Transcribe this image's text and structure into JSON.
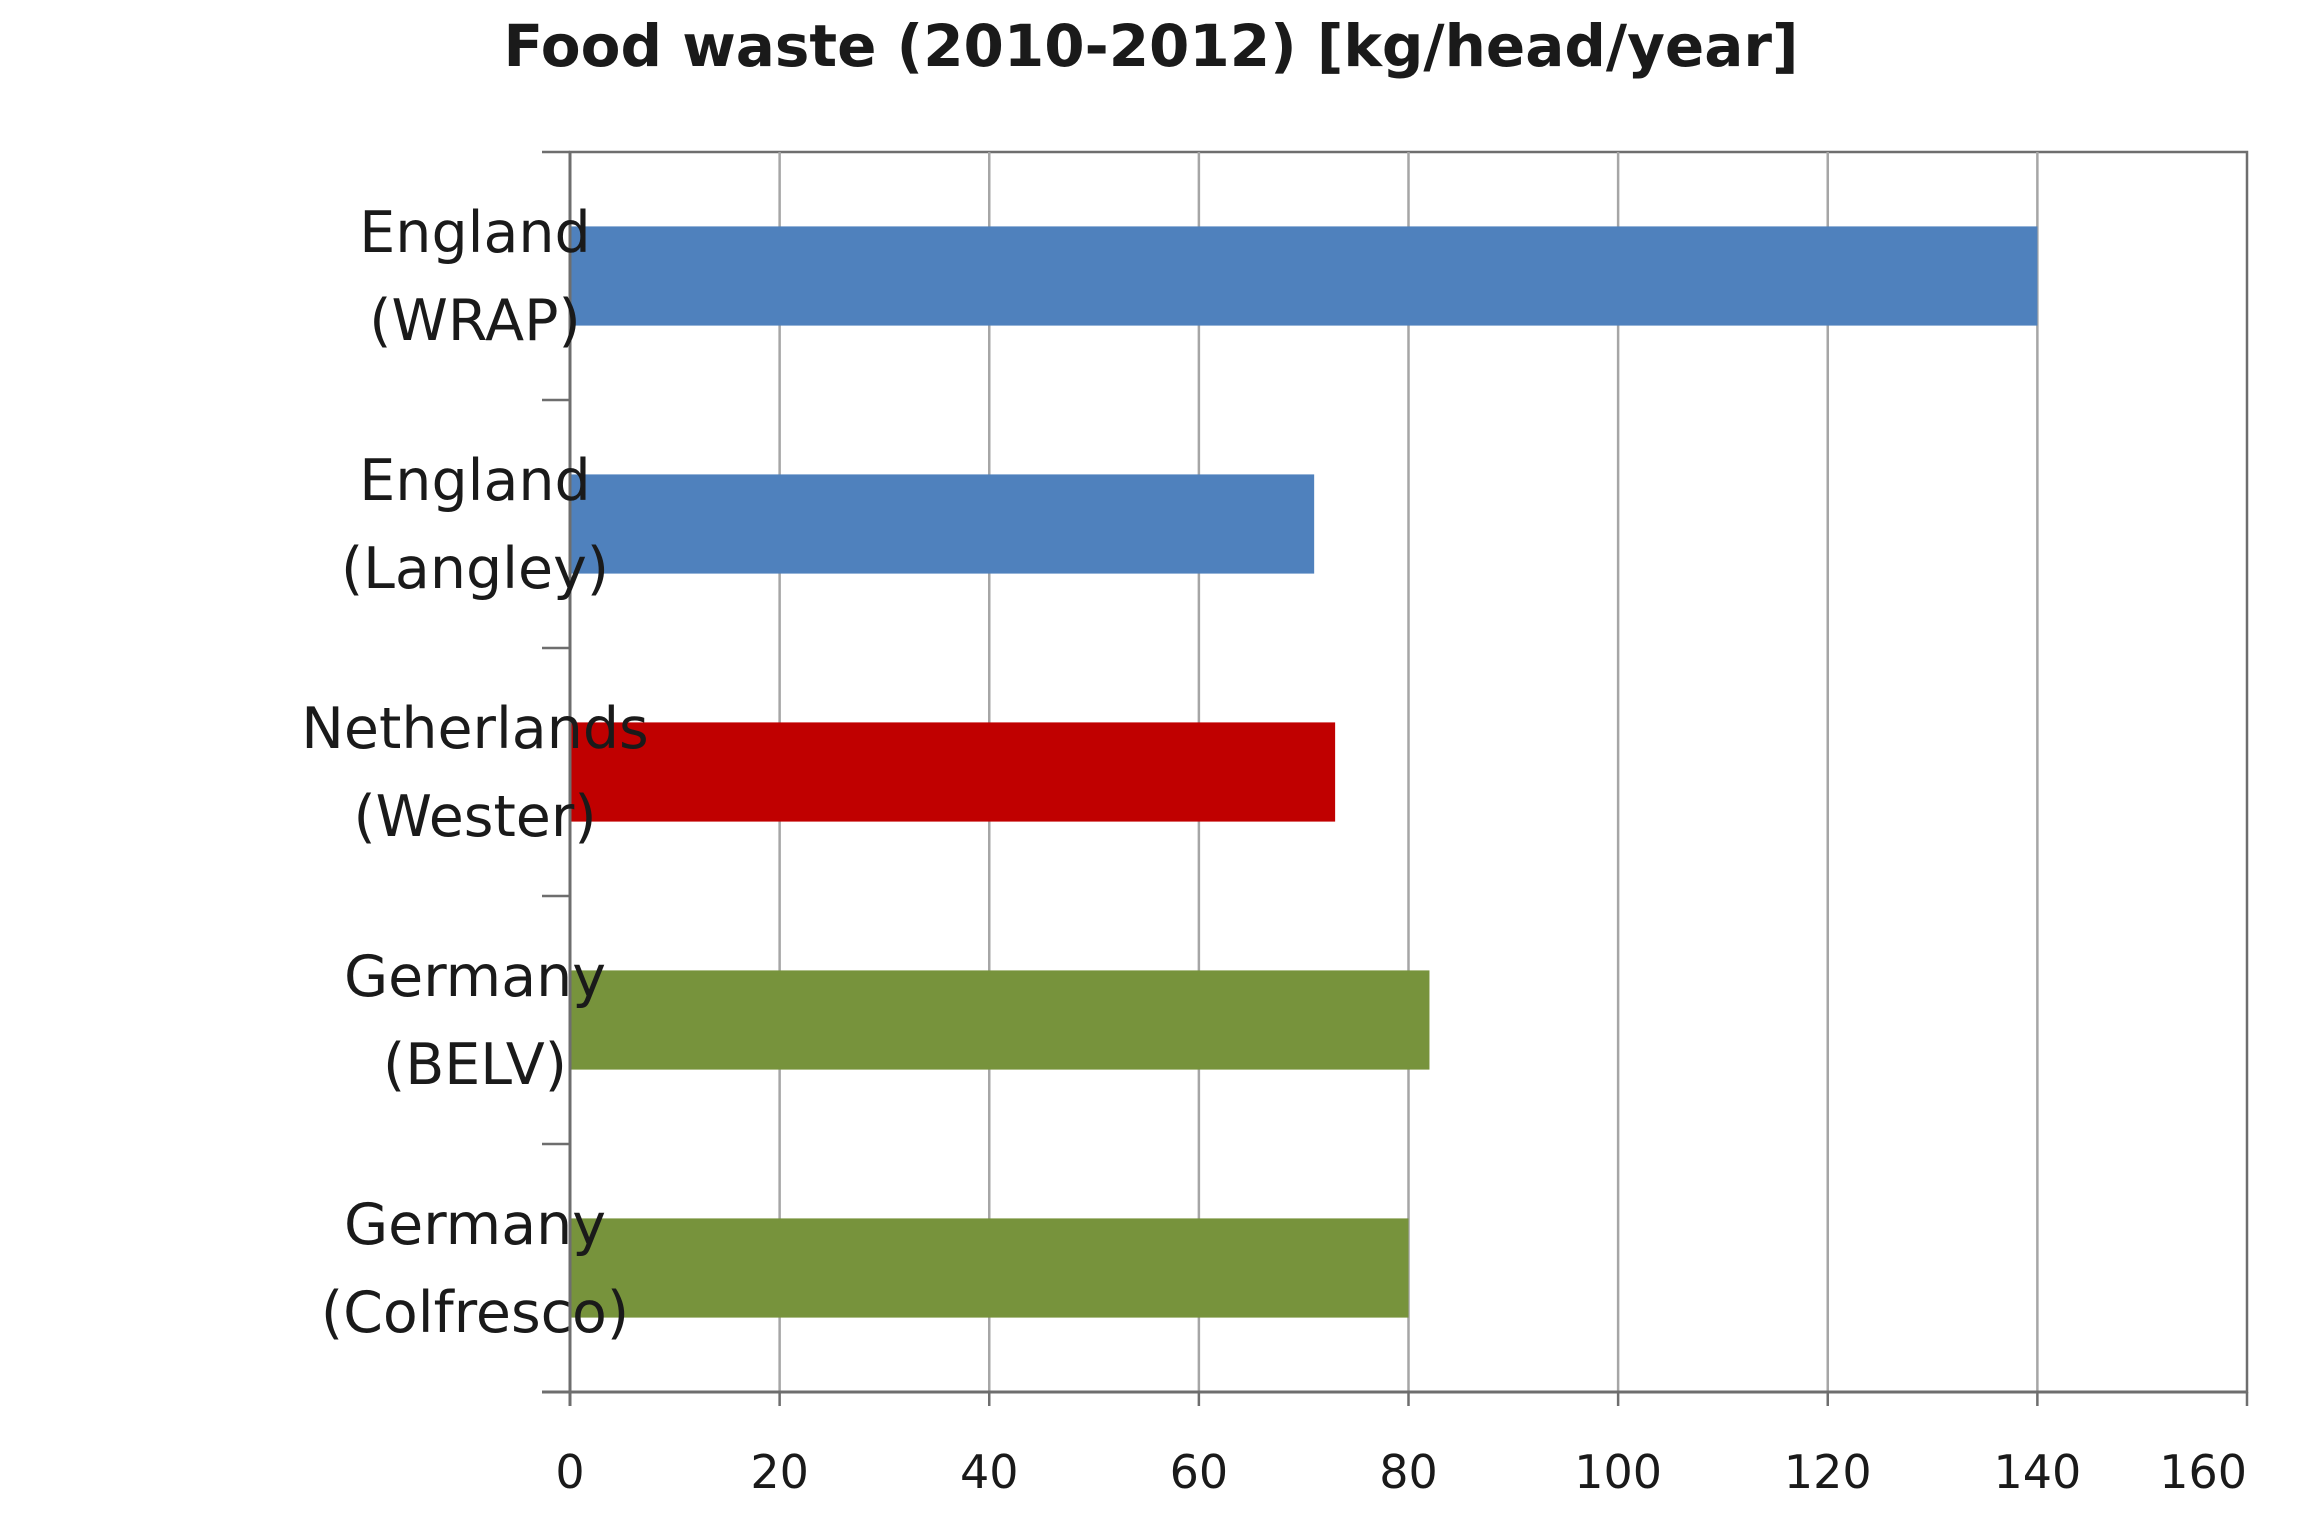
{
  "chart_data": {
    "type": "bar",
    "orientation": "horizontal",
    "title": "Food waste (2010-2012) [kg/head/year]",
    "xlabel": "",
    "ylabel": "",
    "categories": [
      [
        "England",
        "(WRAP)"
      ],
      [
        "England",
        "(Langley)"
      ],
      [
        "Netherlands",
        "(Wester)"
      ],
      [
        "Germany",
        "(BELV)"
      ],
      [
        "Germany",
        "(Colfresco)"
      ]
    ],
    "values": [
      140,
      71,
      73,
      82,
      80
    ],
    "bar_colors": [
      "#4f81bd",
      "#4f81bd",
      "#c00000",
      "#77933c",
      "#77933c"
    ],
    "xlim": [
      0,
      160
    ],
    "xticks": [
      0,
      20,
      40,
      60,
      80,
      100,
      120,
      140,
      160
    ],
    "grid": "vertical",
    "legend": "none"
  }
}
